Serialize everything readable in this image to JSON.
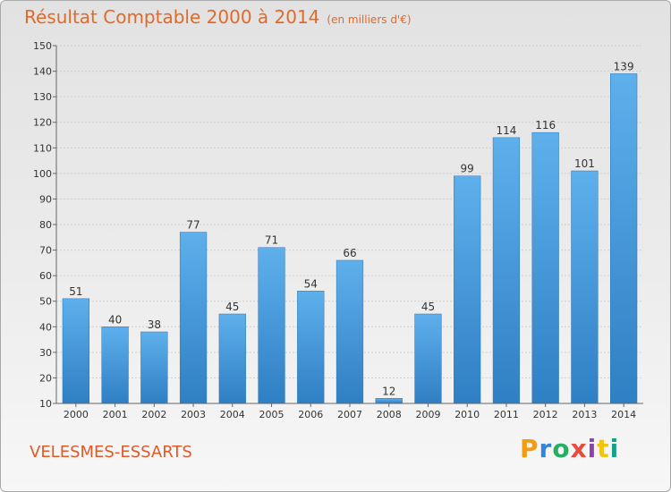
{
  "chart_data": {
    "type": "bar",
    "title": "Résultat Comptable 2000 à 2014",
    "subtitle": "(en milliers d'€)",
    "categories": [
      "2000",
      "2001",
      "2002",
      "2003",
      "2004",
      "2005",
      "2006",
      "2007",
      "2008",
      "2009",
      "2010",
      "2011",
      "2012",
      "2013",
      "2014"
    ],
    "values": [
      51,
      40,
      38,
      77,
      45,
      71,
      54,
      66,
      12,
      45,
      99,
      114,
      116,
      101,
      139
    ],
    "ylim": [
      10,
      150
    ],
    "yticks": [
      10,
      20,
      30,
      40,
      50,
      60,
      70,
      80,
      90,
      100,
      110,
      120,
      130,
      140,
      150
    ],
    "grid": true,
    "bar_color": "#3d8fd6"
  },
  "footer": {
    "commune": "VELESMES-ESSARTS",
    "brand": "Proxiti",
    "brand_colors": [
      "#f39c12",
      "#2e86de",
      "#27ae60",
      "#e74c3c",
      "#8e44ad",
      "#f1c40f",
      "#16a085"
    ]
  }
}
